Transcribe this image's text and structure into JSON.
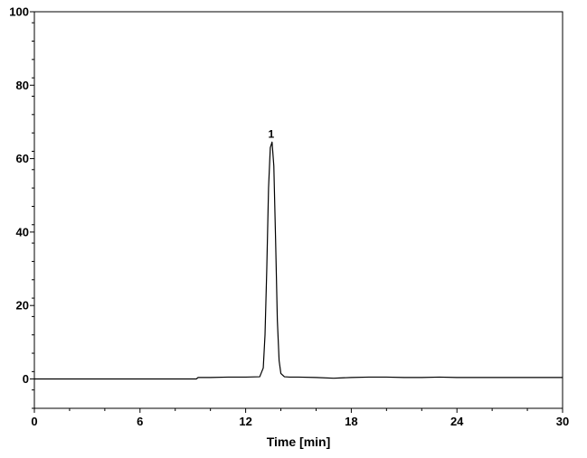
{
  "chart_data": {
    "type": "line",
    "title": "",
    "xlabel": "Time [min]",
    "ylabel": "",
    "xlim": [
      0,
      30
    ],
    "ylim": [
      -8,
      100
    ],
    "x_ticks": [
      0,
      6,
      12,
      18,
      24,
      30
    ],
    "x_tick_labels": [
      "0",
      "6",
      "12",
      "18",
      "24",
      "30"
    ],
    "y_ticks": [
      0,
      20,
      40,
      60,
      80,
      100
    ],
    "y_tick_labels": [
      "0",
      "20",
      "40",
      "60",
      "80",
      "100"
    ],
    "grid": false,
    "legend": "none",
    "series": [
      {
        "color": "#000000",
        "x": [
          0,
          3,
          6,
          9.2,
          9.3,
          10,
          11,
          12,
          12.8,
          13.0,
          13.1,
          13.2,
          13.3,
          13.4,
          13.5,
          13.6,
          13.7,
          13.8,
          13.9,
          14.0,
          14.2,
          14.5,
          15,
          16,
          17,
          17.5,
          18,
          19,
          20,
          21,
          22,
          23,
          24,
          26,
          28,
          30
        ],
        "y": [
          0,
          0,
          0,
          0,
          0.4,
          0.4,
          0.5,
          0.5,
          0.6,
          3,
          12,
          30,
          52,
          63,
          64.5,
          58,
          38,
          16,
          5,
          1.5,
          0.6,
          0.5,
          0.5,
          0.4,
          0.2,
          0.3,
          0.4,
          0.5,
          0.5,
          0.4,
          0.4,
          0.5,
          0.4,
          0.4,
          0.4,
          0.4
        ]
      }
    ],
    "annotations": [
      {
        "text": "1",
        "x": 13.5,
        "y": 64.5
      }
    ]
  }
}
